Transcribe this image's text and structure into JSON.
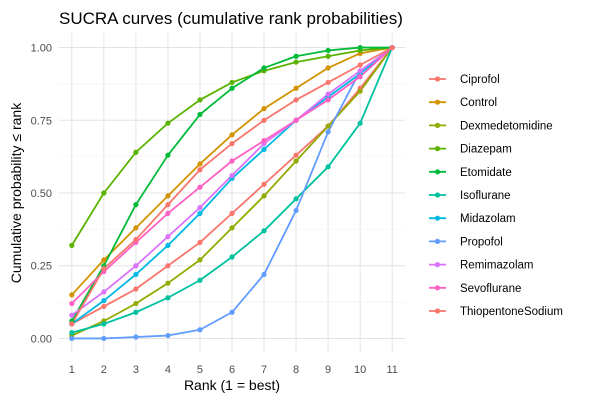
{
  "chart_data": {
    "type": "line",
    "title": "SUCRA curves (cumulative rank probabilities)",
    "xlabel": "Rank (1 = best)",
    "ylabel": "Cumulative probability ≤ rank",
    "xlim": [
      0.6,
      11.4
    ],
    "ylim": [
      -0.05,
      1.05
    ],
    "x_ticks": [
      "1",
      "2",
      "3",
      "4",
      "5",
      "6",
      "7",
      "8",
      "9",
      "10",
      "11"
    ],
    "y_ticks": [
      "0.00",
      "0.25",
      "0.50",
      "0.75",
      "1.00"
    ],
    "grid": true,
    "legend_position": "right",
    "x": [
      1,
      2,
      3,
      4,
      5,
      6,
      7,
      8,
      9,
      10,
      11
    ],
    "series": [
      {
        "name": "Ciprofol",
        "color": "#F8766D",
        "values": [
          0.05,
          0.11,
          0.17,
          0.25,
          0.33,
          0.43,
          0.53,
          0.63,
          0.73,
          0.86,
          1.0
        ]
      },
      {
        "name": "Control",
        "color": "#D39200",
        "values": [
          0.15,
          0.27,
          0.38,
          0.49,
          0.6,
          0.7,
          0.79,
          0.86,
          0.93,
          0.98,
          1.0
        ]
      },
      {
        "name": "Dexmedetomidine",
        "color": "#93AA00",
        "values": [
          0.01,
          0.06,
          0.12,
          0.19,
          0.27,
          0.38,
          0.49,
          0.61,
          0.73,
          0.85,
          1.0
        ]
      },
      {
        "name": "Diazepam",
        "color": "#5BB300",
        "values": [
          0.32,
          0.5,
          0.64,
          0.74,
          0.82,
          0.88,
          0.92,
          0.95,
          0.97,
          0.99,
          1.0
        ]
      },
      {
        "name": "Etomidate",
        "color": "#00BA38",
        "values": [
          0.06,
          0.25,
          0.46,
          0.63,
          0.77,
          0.86,
          0.93,
          0.97,
          0.99,
          1.0,
          1.0
        ]
      },
      {
        "name": "Isoflurane",
        "color": "#00C19F",
        "values": [
          0.02,
          0.05,
          0.09,
          0.14,
          0.2,
          0.28,
          0.37,
          0.48,
          0.59,
          0.74,
          1.0
        ]
      },
      {
        "name": "Midazolam",
        "color": "#00B9E3",
        "values": [
          0.05,
          0.13,
          0.22,
          0.32,
          0.43,
          0.55,
          0.65,
          0.75,
          0.83,
          0.91,
          1.0
        ]
      },
      {
        "name": "Propofol",
        "color": "#619CFF",
        "values": [
          0.0,
          0.0,
          0.005,
          0.01,
          0.03,
          0.09,
          0.22,
          0.44,
          0.71,
          0.92,
          1.0
        ]
      },
      {
        "name": "Remimazolam",
        "color": "#DB72FB",
        "values": [
          0.08,
          0.16,
          0.25,
          0.35,
          0.45,
          0.56,
          0.67,
          0.75,
          0.84,
          0.92,
          1.0
        ]
      },
      {
        "name": "Sevoflurane",
        "color": "#FF61C3",
        "values": [
          0.12,
          0.23,
          0.33,
          0.43,
          0.52,
          0.61,
          0.68,
          0.75,
          0.82,
          0.9,
          1.0
        ]
      },
      {
        "name": "ThiopentoneSodium",
        "color": "#F8766D",
        "values": [
          0.05,
          0.24,
          0.34,
          0.46,
          0.58,
          0.67,
          0.75,
          0.82,
          0.88,
          0.94,
          1.0
        ]
      }
    ]
  }
}
